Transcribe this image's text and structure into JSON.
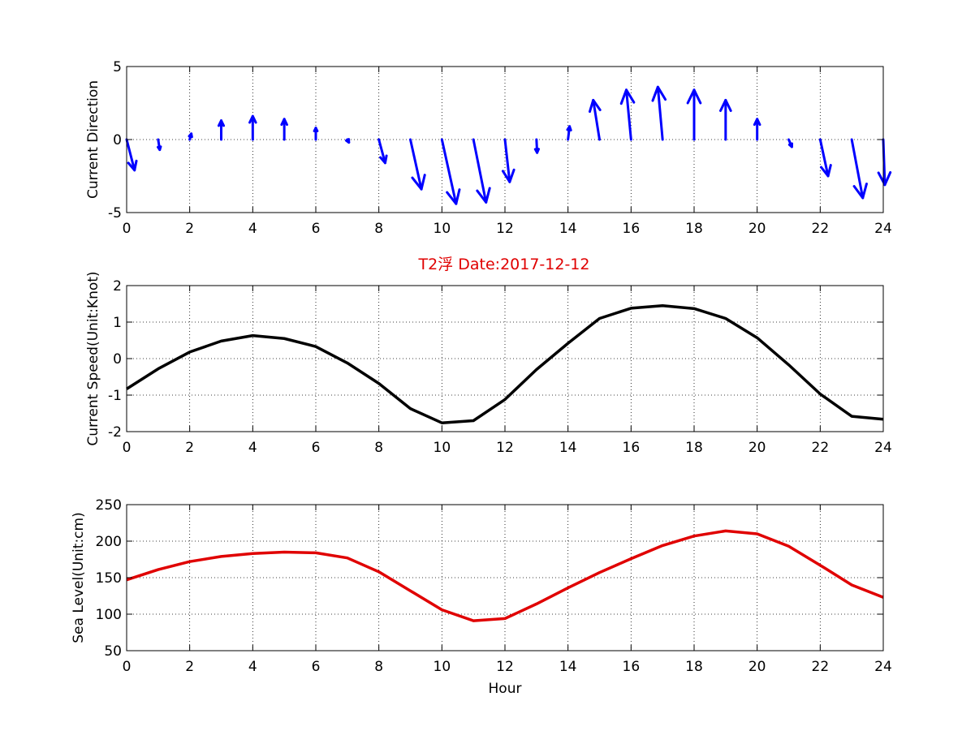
{
  "figure": {
    "title": "T2浮   Date:2017-12-12",
    "title_color": "#e00000"
  },
  "chart_data": [
    {
      "type": "quiver",
      "ylabel": "Current Direction",
      "xlabel": "",
      "xlim": [
        0,
        24
      ],
      "ylim": [
        -5,
        5
      ],
      "xticks": [
        0,
        2,
        4,
        6,
        8,
        10,
        12,
        14,
        16,
        18,
        20,
        22,
        24
      ],
      "yticks": [
        -5,
        0,
        5
      ],
      "grid": true,
      "color": "#0000ff",
      "series": [
        {
          "x": [
            0,
            1,
            2,
            3,
            4,
            5,
            6,
            7,
            8,
            9,
            10,
            11,
            12,
            13,
            14,
            15,
            16,
            17,
            18,
            19,
            20,
            21,
            22,
            23,
            24
          ],
          "u": [
            0.25,
            0.05,
            0.05,
            0.0,
            0.0,
            0.0,
            0.0,
            0.05,
            0.2,
            0.35,
            0.45,
            0.4,
            0.15,
            0.02,
            0.05,
            -0.2,
            -0.15,
            -0.15,
            0.0,
            0.0,
            0.0,
            0.1,
            0.25,
            0.35,
            0.05
          ],
          "v": [
            -2.1,
            -0.7,
            0.4,
            1.3,
            1.6,
            1.4,
            0.8,
            -0.2,
            -1.6,
            -3.4,
            -4.4,
            -4.3,
            -2.9,
            -0.9,
            0.9,
            2.7,
            3.4,
            3.6,
            3.4,
            2.7,
            1.4,
            -0.5,
            -2.5,
            -4.0,
            -3.1
          ]
        }
      ]
    },
    {
      "type": "line",
      "ylabel": "Current Speed(Unit:Knot)",
      "xlabel": "",
      "xlim": [
        0,
        24
      ],
      "ylim": [
        -2,
        2
      ],
      "xticks": [
        0,
        2,
        4,
        6,
        8,
        10,
        12,
        14,
        16,
        18,
        20,
        22,
        24
      ],
      "yticks": [
        -2,
        -1,
        0,
        1,
        2
      ],
      "grid": true,
      "series": [
        {
          "color": "#000000",
          "x": [
            0,
            1,
            2,
            3,
            4,
            5,
            6,
            7,
            8,
            9,
            10,
            11,
            12,
            13,
            14,
            15,
            16,
            17,
            18,
            19,
            20,
            21,
            22,
            23,
            24
          ],
          "y": [
            -0.83,
            -0.28,
            0.18,
            0.48,
            0.63,
            0.55,
            0.33,
            -0.12,
            -0.68,
            -1.37,
            -1.76,
            -1.7,
            -1.12,
            -0.3,
            0.42,
            1.1,
            1.38,
            1.45,
            1.37,
            1.1,
            0.57,
            -0.17,
            -0.97,
            -1.58,
            -1.66
          ]
        }
      ]
    },
    {
      "type": "line",
      "ylabel": "Sea Level(Unit:cm)",
      "xlabel": "Hour",
      "xlim": [
        0,
        24
      ],
      "ylim": [
        50,
        250
      ],
      "xticks": [
        0,
        2,
        4,
        6,
        8,
        10,
        12,
        14,
        16,
        18,
        20,
        22,
        24
      ],
      "yticks": [
        50,
        100,
        150,
        200,
        250
      ],
      "grid": true,
      "series": [
        {
          "color": "#e00000",
          "x": [
            0,
            1,
            2,
            3,
            4,
            5,
            6,
            7,
            8,
            9,
            10,
            11,
            12,
            13,
            14,
            15,
            16,
            17,
            18,
            19,
            20,
            21,
            22,
            23,
            24
          ],
          "y": [
            147,
            161,
            172,
            179,
            183,
            185,
            184,
            177,
            158,
            132,
            106,
            91,
            94,
            114,
            136,
            157,
            176,
            194,
            207,
            214,
            210,
            193,
            167,
            140,
            123
          ]
        }
      ]
    }
  ]
}
